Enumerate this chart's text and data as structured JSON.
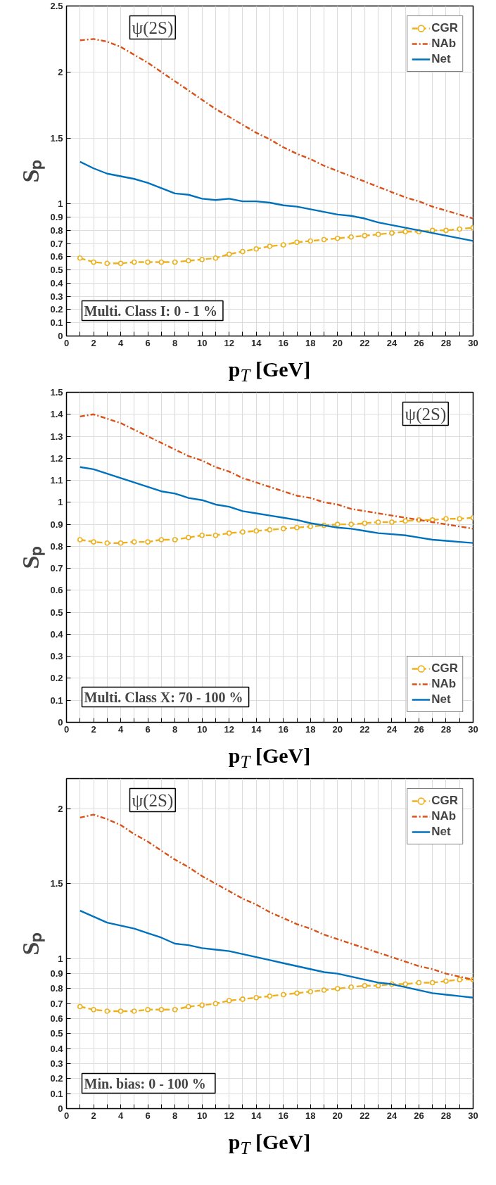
{
  "chart_data": [
    {
      "type": "line",
      "xlabel": "p$_{T}$ [GeV]",
      "ylabel": "Sₚ",
      "annotations": [
        "ψ(2S)",
        "Multi.  Class I: 0 - 1 %"
      ],
      "x": [
        1,
        2,
        3,
        4,
        5,
        6,
        7,
        8,
        9,
        10,
        11,
        12,
        13,
        14,
        15,
        16,
        17,
        18,
        19,
        20,
        21,
        22,
        23,
        24,
        25,
        26,
        27,
        28,
        29,
        30
      ],
      "xlim": [
        0,
        30
      ],
      "ylim": [
        0,
        2.5
      ],
      "xticks": [
        0,
        {
          "value": 1,
          "label": null
        },
        2,
        {
          "value": 3,
          "label": null
        },
        4,
        {
          "value": 5,
          "label": null
        },
        6,
        {
          "value": 7,
          "label": null
        },
        8,
        {
          "value": 9,
          "label": null
        },
        10,
        {
          "value": 11,
          "label": null
        },
        12,
        {
          "value": 13,
          "label": null
        },
        14,
        {
          "value": 15,
          "label": null
        },
        16,
        {
          "value": 17,
          "label": null
        },
        18,
        {
          "value": 19,
          "label": null
        },
        20,
        {
          "value": 21,
          "label": null
        },
        22,
        {
          "value": 23,
          "label": null
        },
        24,
        {
          "value": 25,
          "label": null
        },
        26,
        {
          "value": 27,
          "label": null
        },
        28,
        {
          "value": 29,
          "label": null
        },
        30
      ],
      "yticks": [
        0,
        0.1,
        0.2,
        0.3,
        0.4,
        0.5,
        0.6,
        0.7,
        0.8,
        0.9,
        1,
        1.5,
        2,
        2.5
      ],
      "grid": true,
      "legend": "top right",
      "series": [
        {
          "name": "CGR",
          "color": "#edb120",
          "line_style": "dashed",
          "marker": "circle",
          "values": [
            0.59,
            0.56,
            0.55,
            0.55,
            0.56,
            0.56,
            0.56,
            0.56,
            0.57,
            0.58,
            0.59,
            0.62,
            0.64,
            0.66,
            0.68,
            0.69,
            0.71,
            0.72,
            0.73,
            0.74,
            0.75,
            0.76,
            0.77,
            0.78,
            0.79,
            0.79,
            0.8,
            0.8,
            0.81,
            0.82
          ]
        },
        {
          "name": "NAb",
          "color": "#d95319",
          "line_style": "dashdot",
          "marker": "none",
          "values": [
            2.24,
            2.25,
            2.23,
            2.19,
            2.13,
            2.07,
            2.0,
            1.93,
            1.86,
            1.79,
            1.72,
            1.66,
            1.6,
            1.54,
            1.49,
            1.43,
            1.38,
            1.34,
            1.29,
            1.25,
            1.21,
            1.17,
            1.13,
            1.09,
            1.05,
            1.02,
            0.98,
            0.95,
            0.92,
            0.89
          ]
        },
        {
          "name": "Net",
          "color": "#0072bd",
          "line_style": "solid",
          "marker": "none",
          "values": [
            1.32,
            1.27,
            1.23,
            1.21,
            1.19,
            1.16,
            1.12,
            1.08,
            1.07,
            1.04,
            1.03,
            1.04,
            1.02,
            1.02,
            1.01,
            0.99,
            0.98,
            0.96,
            0.94,
            0.92,
            0.91,
            0.89,
            0.86,
            0.84,
            0.82,
            0.8,
            0.78,
            0.76,
            0.74,
            0.72
          ]
        }
      ]
    },
    {
      "type": "line",
      "xlabel": "p$_{T}$ [GeV]",
      "ylabel": "Sₚ",
      "annotations": [
        "ψ(2S)",
        "Multi.  Class X: 70 - 100 %"
      ],
      "x": [
        1,
        2,
        3,
        4,
        5,
        6,
        7,
        8,
        9,
        10,
        11,
        12,
        13,
        14,
        15,
        16,
        17,
        18,
        19,
        20,
        21,
        22,
        23,
        24,
        25,
        26,
        27,
        28,
        29,
        30
      ],
      "xlim": [
        0,
        30
      ],
      "ylim": [
        0,
        1.5
      ],
      "xticks": [
        0,
        {
          "value": 1,
          "label": null
        },
        2,
        {
          "value": 3,
          "label": null
        },
        4,
        {
          "value": 5,
          "label": null
        },
        6,
        {
          "value": 7,
          "label": null
        },
        8,
        {
          "value": 9,
          "label": null
        },
        10,
        {
          "value": 11,
          "label": null
        },
        12,
        {
          "value": 13,
          "label": null
        },
        14,
        {
          "value": 15,
          "label": null
        },
        16,
        {
          "value": 17,
          "label": null
        },
        18,
        {
          "value": 19,
          "label": null
        },
        20,
        {
          "value": 21,
          "label": null
        },
        22,
        {
          "value": 23,
          "label": null
        },
        24,
        {
          "value": 25,
          "label": null
        },
        26,
        {
          "value": 27,
          "label": null
        },
        28,
        {
          "value": 29,
          "label": null
        },
        30
      ],
      "yticks": [
        0,
        0.1,
        0.2,
        0.3,
        0.4,
        0.5,
        0.6,
        0.7,
        0.8,
        0.9,
        1,
        1.1,
        1.2,
        1.3,
        1.4,
        1.5
      ],
      "grid": true,
      "legend": "bottom right",
      "series": [
        {
          "name": "CGR",
          "color": "#edb120",
          "line_style": "dashed",
          "marker": "circle",
          "values": [
            0.83,
            0.82,
            0.815,
            0.815,
            0.82,
            0.82,
            0.83,
            0.83,
            0.84,
            0.85,
            0.85,
            0.86,
            0.865,
            0.87,
            0.875,
            0.88,
            0.885,
            0.89,
            0.895,
            0.9,
            0.9,
            0.905,
            0.91,
            0.91,
            0.915,
            0.92,
            0.92,
            0.925,
            0.925,
            0.93
          ]
        },
        {
          "name": "NAb",
          "color": "#d95319",
          "line_style": "dashdot",
          "marker": "none",
          "values": [
            1.39,
            1.4,
            1.38,
            1.36,
            1.33,
            1.3,
            1.27,
            1.24,
            1.21,
            1.19,
            1.16,
            1.14,
            1.11,
            1.09,
            1.07,
            1.05,
            1.03,
            1.02,
            1.0,
            0.99,
            0.97,
            0.96,
            0.95,
            0.94,
            0.93,
            0.92,
            0.91,
            0.9,
            0.89,
            0.88
          ]
        },
        {
          "name": "Net",
          "color": "#0072bd",
          "line_style": "solid",
          "marker": "none",
          "values": [
            1.16,
            1.15,
            1.13,
            1.11,
            1.09,
            1.07,
            1.05,
            1.04,
            1.02,
            1.01,
            0.99,
            0.98,
            0.96,
            0.95,
            0.94,
            0.93,
            0.92,
            0.905,
            0.895,
            0.885,
            0.88,
            0.87,
            0.86,
            0.855,
            0.85,
            0.84,
            0.83,
            0.825,
            0.82,
            0.815
          ]
        }
      ]
    },
    {
      "type": "line",
      "xlabel": "p$_{T}$ [GeV]",
      "ylabel": "Sₚ",
      "annotations": [
        "ψ(2S)",
        "Min.  bias:  0 - 100 %"
      ],
      "x": [
        1,
        2,
        3,
        4,
        5,
        6,
        7,
        8,
        9,
        10,
        11,
        12,
        13,
        14,
        15,
        16,
        17,
        18,
        19,
        20,
        21,
        22,
        23,
        24,
        25,
        26,
        27,
        28,
        29,
        30
      ],
      "xlim": [
        0,
        30
      ],
      "ylim": [
        0,
        2.2
      ],
      "xticks": [
        0,
        {
          "value": 1,
          "label": null
        },
        2,
        {
          "value": 3,
          "label": null
        },
        4,
        {
          "value": 5,
          "label": null
        },
        6,
        {
          "value": 7,
          "label": null
        },
        8,
        {
          "value": 9,
          "label": null
        },
        10,
        {
          "value": 11,
          "label": null
        },
        12,
        {
          "value": 13,
          "label": null
        },
        14,
        {
          "value": 15,
          "label": null
        },
        16,
        {
          "value": 17,
          "label": null
        },
        18,
        {
          "value": 19,
          "label": null
        },
        20,
        {
          "value": 21,
          "label": null
        },
        22,
        {
          "value": 23,
          "label": null
        },
        24,
        {
          "value": 25,
          "label": null
        },
        26,
        {
          "value": 27,
          "label": null
        },
        28,
        {
          "value": 29,
          "label": null
        },
        30
      ],
      "yticks": [
        0,
        0.1,
        0.2,
        0.3,
        0.4,
        0.5,
        0.6,
        0.7,
        0.8,
        0.9,
        1,
        1.5,
        2
      ],
      "grid": true,
      "legend": "top right",
      "series": [
        {
          "name": "CGR",
          "color": "#edb120",
          "line_style": "dashed",
          "marker": "circle",
          "values": [
            0.68,
            0.66,
            0.65,
            0.65,
            0.65,
            0.66,
            0.66,
            0.66,
            0.68,
            0.69,
            0.7,
            0.72,
            0.73,
            0.74,
            0.75,
            0.76,
            0.77,
            0.78,
            0.79,
            0.8,
            0.81,
            0.82,
            0.82,
            0.83,
            0.83,
            0.84,
            0.84,
            0.85,
            0.86,
            0.86
          ]
        },
        {
          "name": "NAb",
          "color": "#d95319",
          "line_style": "dashdot",
          "marker": "none",
          "values": [
            1.94,
            1.96,
            1.93,
            1.89,
            1.83,
            1.78,
            1.72,
            1.66,
            1.61,
            1.55,
            1.5,
            1.45,
            1.4,
            1.36,
            1.31,
            1.27,
            1.23,
            1.2,
            1.16,
            1.13,
            1.1,
            1.07,
            1.04,
            1.01,
            0.98,
            0.95,
            0.93,
            0.9,
            0.88,
            0.86
          ]
        },
        {
          "name": "Net",
          "color": "#0072bd",
          "line_style": "solid",
          "marker": "none",
          "values": [
            1.32,
            1.28,
            1.24,
            1.22,
            1.2,
            1.17,
            1.14,
            1.1,
            1.09,
            1.07,
            1.06,
            1.05,
            1.03,
            1.01,
            0.99,
            0.97,
            0.95,
            0.93,
            0.91,
            0.9,
            0.88,
            0.86,
            0.84,
            0.83,
            0.81,
            0.79,
            0.77,
            0.76,
            0.75,
            0.74
          ]
        }
      ]
    }
  ]
}
